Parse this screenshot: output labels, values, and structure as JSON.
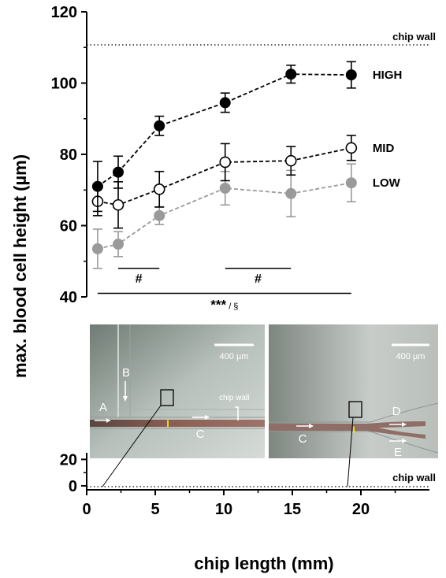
{
  "chart_data": {
    "type": "scatter",
    "xlabel": "chip length (mm)",
    "ylabel": "max. blood cell height (µm)",
    "xlim": [
      0,
      25
    ],
    "ylim_upper": [
      40,
      120
    ],
    "ylim_lower": [
      -3,
      25
    ],
    "x_ticks": [
      "0",
      "5",
      "10",
      "15",
      "20"
    ],
    "y_ticks_upper": [
      "40",
      "60",
      "80",
      "100",
      "120"
    ],
    "y_ticks_lower": [
      "0",
      "20"
    ],
    "chip_wall_upper": 110,
    "chip_wall_lower": 0,
    "chip_wall_label": "chip wall",
    "x": [
      0.8,
      2.3,
      5.3,
      10.1,
      14.9,
      19.3
    ],
    "series": [
      {
        "name": "HIGH",
        "style": "filled-black",
        "color": "#000000",
        "values": [
          71,
          75,
          88,
          94.5,
          102.5,
          102.3
        ],
        "errors": [
          7,
          4.5,
          2.7,
          2.7,
          2.5,
          3.7
        ]
      },
      {
        "name": "MID",
        "style": "open",
        "color": "#000000",
        "values": [
          66.8,
          65.8,
          70.2,
          77.8,
          78.2,
          81.8
        ],
        "errors": [
          4,
          6.5,
          5,
          5.2,
          4,
          3.5
        ]
      },
      {
        "name": "LOW",
        "style": "filled-grey",
        "color": "#9a9a9a",
        "values": [
          53.5,
          54.8,
          62.8,
          70.5,
          69,
          72
        ],
        "errors": [
          5.5,
          3.5,
          2.5,
          4.7,
          6.5,
          5.3
        ]
      }
    ],
    "sig_lines": [
      {
        "label": "#",
        "x1": 2.3,
        "x2": 5.3,
        "y": 48
      },
      {
        "label": "#",
        "x1": 10.1,
        "x2": 14.9,
        "y": 48
      },
      {
        "label": "*** / §",
        "x1": 0.8,
        "x2": 19.3,
        "y": 41
      }
    ]
  },
  "inset": {
    "left": {
      "scale": "400 µm",
      "labels": [
        "A",
        "B",
        "C"
      ],
      "chip_wall": "chip wall",
      "marker": "I"
    },
    "right": {
      "scale": "400 µm",
      "labels": [
        "C",
        "D",
        "E"
      ],
      "marker": "I"
    }
  }
}
